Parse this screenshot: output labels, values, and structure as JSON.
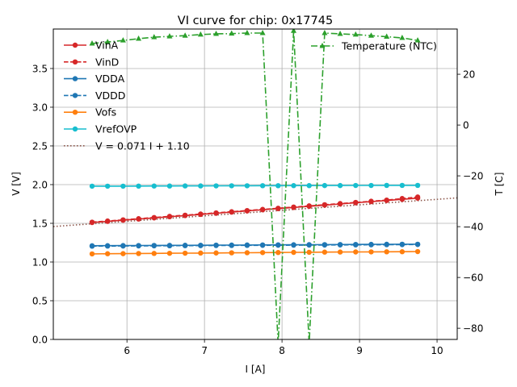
{
  "chart_data": {
    "type": "line",
    "title": "VI curve for chip: 0x17745",
    "xlabel": "I [A]",
    "ylabel": "V [V]",
    "y2label": "T [C]",
    "xlim": [
      5.05,
      10.26
    ],
    "ylim": [
      0.0,
      4.01
    ],
    "y2lim": [
      -84.4,
      37.8
    ],
    "xticks": [
      6,
      7,
      8,
      9,
      10
    ],
    "yticks": [
      0.0,
      0.5,
      1.0,
      1.5,
      2.0,
      2.5,
      3.0,
      3.5
    ],
    "y2ticks": [
      20,
      0,
      -20,
      -40,
      -60,
      -80
    ],
    "grid": true,
    "legend_left_position": "top-left",
    "legend_right_position": "top-right",
    "x": [
      5.55,
      5.75,
      5.95,
      6.15,
      6.35,
      6.55,
      6.75,
      6.95,
      7.15,
      7.35,
      7.55,
      7.75,
      7.95,
      8.15,
      8.35,
      8.55,
      8.75,
      8.95,
      9.15,
      9.35,
      9.55,
      9.75
    ],
    "series": [
      {
        "name": "VinA",
        "color": "#d62728",
        "dash": "solid",
        "marker": "circle",
        "axis": "left",
        "values": [
          1.51,
          1.525,
          1.54,
          1.555,
          1.57,
          1.585,
          1.6,
          1.615,
          1.63,
          1.645,
          1.66,
          1.675,
          1.69,
          1.705,
          1.72,
          1.735,
          1.75,
          1.765,
          1.78,
          1.795,
          1.81,
          1.825
        ]
      },
      {
        "name": "VinD",
        "color": "#d62728",
        "dash": "dashed",
        "marker": "circle",
        "axis": "left",
        "values": [
          1.515,
          1.53,
          1.545,
          1.56,
          1.575,
          1.59,
          1.605,
          1.62,
          1.635,
          1.65,
          1.665,
          1.68,
          1.695,
          1.71,
          1.725,
          1.74,
          1.755,
          1.77,
          1.785,
          1.8,
          1.82,
          1.84
        ]
      },
      {
        "name": "VDDA",
        "color": "#1f77b4",
        "dash": "solid",
        "marker": "circle",
        "axis": "left",
        "values": [
          1.21,
          1.211,
          1.212,
          1.213,
          1.214,
          1.215,
          1.216,
          1.217,
          1.218,
          1.219,
          1.22,
          1.221,
          1.222,
          1.223,
          1.224,
          1.225,
          1.226,
          1.227,
          1.228,
          1.229,
          1.23,
          1.23
        ]
      },
      {
        "name": "VDDD",
        "color": "#1f77b4",
        "dash": "dashed",
        "marker": "circle",
        "axis": "left",
        "values": [
          1.205,
          1.206,
          1.207,
          1.208,
          1.209,
          1.21,
          1.211,
          1.212,
          1.213,
          1.214,
          1.215,
          1.216,
          1.217,
          1.218,
          1.219,
          1.22,
          1.221,
          1.222,
          1.223,
          1.224,
          1.225,
          1.226
        ]
      },
      {
        "name": "Vofs",
        "color": "#ff7f0e",
        "dash": "solid",
        "marker": "circle",
        "axis": "left",
        "values": [
          1.105,
          1.107,
          1.108,
          1.11,
          1.111,
          1.113,
          1.114,
          1.116,
          1.117,
          1.119,
          1.12,
          1.122,
          1.123,
          1.125,
          1.126,
          1.128,
          1.129,
          1.13,
          1.131,
          1.132,
          1.133,
          1.135
        ]
      },
      {
        "name": "VrefOVP",
        "color": "#17becf",
        "dash": "solid",
        "marker": "circle",
        "axis": "left",
        "values": [
          1.98,
          1.98,
          1.98,
          1.981,
          1.982,
          1.982,
          1.983,
          1.983,
          1.984,
          1.985,
          1.985,
          1.986,
          1.986,
          1.987,
          1.987,
          1.988,
          1.988,
          1.989,
          1.989,
          1.99,
          1.99,
          1.99
        ]
      },
      {
        "name": "Temperature (NTC)",
        "color": "#2ca02c",
        "dash": "dashdot",
        "marker": "triangle",
        "axis": "right",
        "values": [
          32.1,
          32.7,
          33.3,
          34.0,
          34.6,
          34.9,
          35.2,
          35.6,
          35.9,
          36.0,
          36.2,
          36.2,
          -86.0,
          37.1,
          -86.0,
          36.2,
          35.9,
          35.6,
          35.2,
          34.8,
          34.3,
          33.3
        ]
      }
    ],
    "fit": {
      "name": "V = 0.071 I + 1.10",
      "slope": 0.071,
      "intercept": 1.1,
      "color": "#8c564b",
      "dash": "dotted",
      "x_range": [
        5.05,
        10.26
      ]
    },
    "legend_left": [
      "VinA",
      "VinD",
      "VDDA",
      "VDDD",
      "Vofs",
      "VrefOVP",
      "V = 0.071 I + 1.10"
    ],
    "legend_right": [
      "Temperature (NTC)"
    ]
  }
}
